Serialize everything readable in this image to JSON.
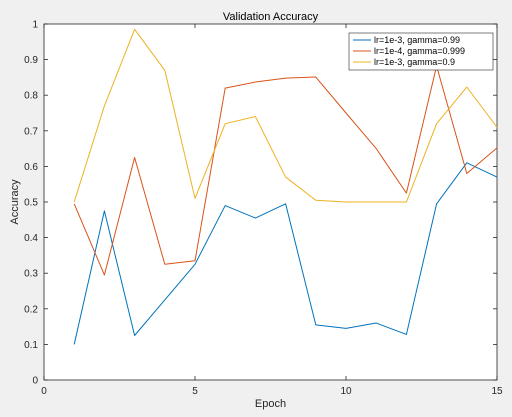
{
  "chart_data": {
    "type": "line",
    "title": "Validation Accuracy",
    "xlabel": "Epoch",
    "ylabel": "Accuracy",
    "xlim": [
      0,
      15
    ],
    "ylim": [
      0,
      1
    ],
    "xticks": [
      0,
      5,
      10,
      15
    ],
    "yticks": [
      0,
      0.1,
      0.2,
      0.3,
      0.4,
      0.5,
      0.6,
      0.7,
      0.8,
      0.9,
      1
    ],
    "grid": false,
    "legend_position": "top-right",
    "x": [
      1,
      2,
      3,
      4,
      5,
      6,
      7,
      8,
      9,
      10,
      11,
      12,
      13,
      14,
      15
    ],
    "series": [
      {
        "name": "lr=1e-3, gamma=0.99",
        "color": "#0072bd",
        "values": [
          0.1,
          0.475,
          0.125,
          0.225,
          0.325,
          0.49,
          0.455,
          0.495,
          0.155,
          0.145,
          0.16,
          0.128,
          0.495,
          0.61,
          0.57
        ]
      },
      {
        "name": "lr=1e-4, gamma=0.999",
        "color": "#d95319",
        "values": [
          0.495,
          0.295,
          0.625,
          0.325,
          0.335,
          0.82,
          0.837,
          0.848,
          0.851,
          0.75,
          0.65,
          0.525,
          0.882,
          0.58,
          0.652
        ]
      },
      {
        "name": "lr=1e-3, gamma=0.9",
        "color": "#edb120",
        "values": [
          0.5,
          0.77,
          0.985,
          0.87,
          0.51,
          0.72,
          0.74,
          0.57,
          0.505,
          0.5,
          0.5,
          0.5,
          0.72,
          0.823,
          0.71
        ]
      }
    ]
  }
}
